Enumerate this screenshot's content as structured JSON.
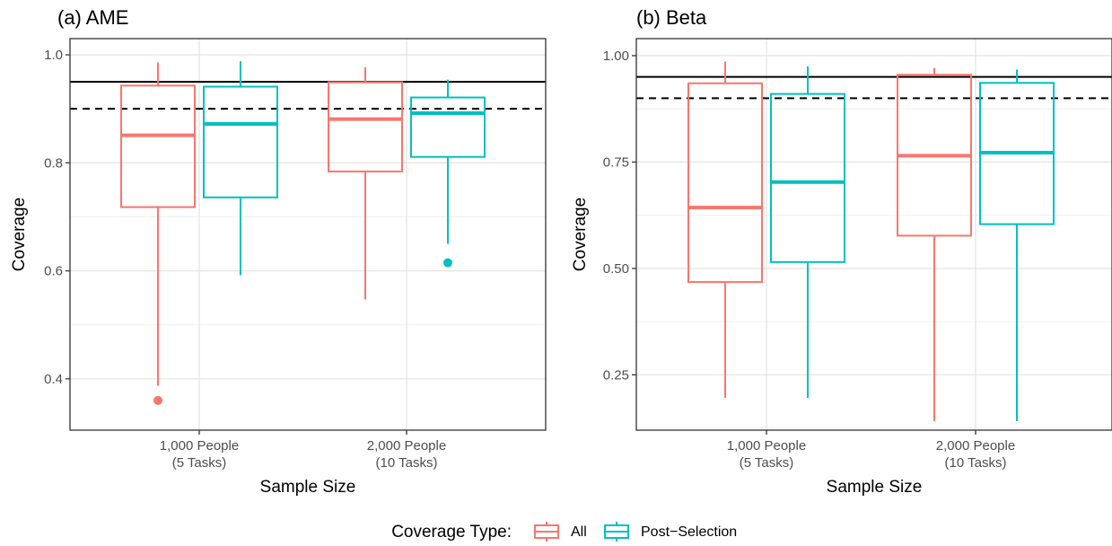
{
  "chart_data": [
    {
      "type": "box",
      "title": "(a) AME",
      "xlabel": "Sample Size",
      "ylabel": "Coverage",
      "ylim": [
        0.305,
        1.03
      ],
      "yticks": [
        0.4,
        0.6,
        0.8,
        1.0
      ],
      "ytick_labels": [
        "0.4",
        "0.6",
        "0.8",
        "1.0"
      ],
      "categories": [
        {
          "line1": "1,000 People",
          "line2": "(5 Tasks)"
        },
        {
          "line1": "2,000 People",
          "line2": "(10 Tasks)"
        }
      ],
      "reference_lines": [
        {
          "y": 0.95,
          "style": "solid"
        },
        {
          "y": 0.9,
          "style": "dashed"
        }
      ],
      "grid": true,
      "series": [
        {
          "name": "All",
          "color": "#F8766D",
          "boxes": [
            {
              "min": 0.387,
              "q1": 0.718,
              "median": 0.851,
              "q3": 0.943,
              "max": 0.986,
              "outliers": [
                0.36
              ]
            },
            {
              "min": 0.547,
              "q1": 0.784,
              "median": 0.881,
              "q3": 0.949,
              "max": 0.977,
              "outliers": []
            }
          ]
        },
        {
          "name": "Post-Selection",
          "color": "#00BFC4",
          "boxes": [
            {
              "min": 0.592,
              "q1": 0.736,
              "median": 0.872,
              "q3": 0.941,
              "max": 0.988,
              "outliers": []
            },
            {
              "min": 0.65,
              "q1": 0.811,
              "median": 0.892,
              "q3": 0.921,
              "max": 0.954,
              "outliers": [
                0.615
              ]
            }
          ]
        }
      ]
    },
    {
      "type": "box",
      "title": "(b) Beta",
      "xlabel": "Sample Size",
      "ylabel": "Coverage",
      "ylim": [
        0.12,
        1.04
      ],
      "yticks": [
        0.25,
        0.5,
        0.75,
        1.0
      ],
      "ytick_labels": [
        "0.25",
        "0.50",
        "0.75",
        "1.00"
      ],
      "categories": [
        {
          "line1": "1,000 People",
          "line2": "(5 Tasks)"
        },
        {
          "line1": "2,000 People",
          "line2": "(10 Tasks)"
        }
      ],
      "reference_lines": [
        {
          "y": 0.95,
          "style": "solid"
        },
        {
          "y": 0.9,
          "style": "dashed"
        }
      ],
      "grid": true,
      "series": [
        {
          "name": "All",
          "color": "#F8766D",
          "boxes": [
            {
              "min": 0.196,
              "q1": 0.468,
              "median": 0.643,
              "q3": 0.935,
              "max": 0.986,
              "outliers": []
            },
            {
              "min": 0.141,
              "q1": 0.577,
              "median": 0.765,
              "q3": 0.955,
              "max": 0.971,
              "outliers": []
            }
          ]
        },
        {
          "name": "Post-Selection",
          "color": "#00BFC4",
          "boxes": [
            {
              "min": 0.196,
              "q1": 0.515,
              "median": 0.703,
              "q3": 0.91,
              "max": 0.975,
              "outliers": []
            },
            {
              "min": 0.141,
              "q1": 0.604,
              "median": 0.772,
              "q3": 0.936,
              "max": 0.967,
              "outliers": []
            }
          ]
        }
      ]
    }
  ],
  "legend": {
    "title": "Coverage Type:",
    "position": "bottom",
    "items": [
      {
        "label": "All",
        "color": "#F8766D"
      },
      {
        "label": "Post−Selection",
        "color": "#00BFC4"
      }
    ]
  }
}
